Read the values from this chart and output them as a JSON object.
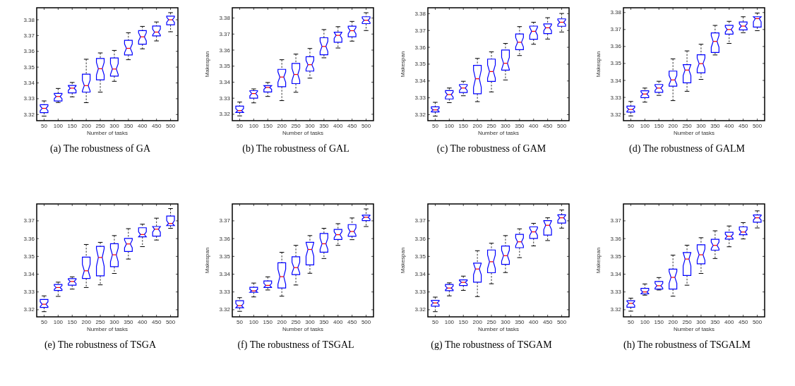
{
  "chart_data": [
    {
      "type": "box",
      "title": "(a) The robustness of GA",
      "xlabel": "Number of tasks",
      "categories": [
        "50",
        "100",
        "150",
        "200",
        "250",
        "300",
        "350",
        "400",
        "450",
        "500"
      ],
      "color": "#0000ff",
      "ylim": [
        3.3161,
        3.3876
      ],
      "yticks": [
        3.32,
        3.33,
        3.34,
        3.35,
        3.36,
        3.37,
        3.38
      ],
      "boxes": [
        {
          "low": 3.319,
          "q1": 3.3212,
          "median": 3.3239,
          "q3": 3.3262,
          "high": 3.3286
        },
        {
          "low": 3.3276,
          "q1": 3.3286,
          "median": 3.3314,
          "q3": 3.3334,
          "high": 3.3365
        },
        {
          "low": 3.3312,
          "q1": 3.3337,
          "median": 3.3367,
          "q3": 3.3384,
          "high": 3.3403
        },
        {
          "low": 3.3275,
          "q1": 3.3342,
          "median": 3.3383,
          "q3": 3.3455,
          "high": 3.355
        },
        {
          "low": 3.3342,
          "q1": 3.342,
          "median": 3.349,
          "q3": 3.3555,
          "high": 3.359
        },
        {
          "low": 3.341,
          "q1": 3.3443,
          "median": 3.3488,
          "q3": 3.3558,
          "high": 3.3606
        },
        {
          "low": 3.3547,
          "q1": 3.3577,
          "median": 3.3619,
          "q3": 3.367,
          "high": 3.3718
        },
        {
          "low": 3.3616,
          "q1": 3.3645,
          "median": 3.3692,
          "q3": 3.3731,
          "high": 3.3758
        },
        {
          "low": 3.3666,
          "q1": 3.3698,
          "median": 3.3722,
          "q3": 3.376,
          "high": 3.3786
        },
        {
          "low": 3.3724,
          "q1": 3.3768,
          "median": 3.38,
          "q3": 3.3823,
          "high": 3.3845
        }
      ]
    },
    {
      "type": "box",
      "title": "(b) The robustness of GAL",
      "xlabel": "Number of tasks",
      "ylabel": "Makespan",
      "categories": [
        "50",
        "100",
        "150",
        "200",
        "250",
        "300",
        "350",
        "400",
        "450",
        "500"
      ],
      "color": "#0000ff",
      "ylim": [
        3.316,
        3.3864
      ],
      "yticks": [
        3.32,
        3.33,
        3.34,
        3.35,
        3.36,
        3.37,
        3.38
      ],
      "boxes": [
        {
          "low": 3.319,
          "q1": 3.3211,
          "median": 3.3223,
          "q3": 3.3251,
          "high": 3.3276
        },
        {
          "low": 3.3271,
          "q1": 3.33,
          "median": 3.3329,
          "q3": 3.3347,
          "high": 3.3358
        },
        {
          "low": 3.3311,
          "q1": 3.3339,
          "median": 3.3367,
          "q3": 3.3378,
          "high": 3.3398
        },
        {
          "low": 3.3285,
          "q1": 3.3372,
          "median": 3.3432,
          "q3": 3.348,
          "high": 3.354
        },
        {
          "low": 3.3337,
          "q1": 3.3391,
          "median": 3.3448,
          "q3": 3.3517,
          "high": 3.3575
        },
        {
          "low": 3.3425,
          "q1": 3.3469,
          "median": 3.3509,
          "q3": 3.3559,
          "high": 3.361
        },
        {
          "low": 3.3552,
          "q1": 3.3571,
          "median": 3.3623,
          "q3": 3.3677,
          "high": 3.3728
        },
        {
          "low": 3.3613,
          "q1": 3.3649,
          "median": 3.3692,
          "q3": 3.3712,
          "high": 3.3746
        },
        {
          "low": 3.3656,
          "q1": 3.3683,
          "median": 3.3721,
          "q3": 3.3749,
          "high": 3.3779
        },
        {
          "low": 3.3722,
          "q1": 3.3765,
          "median": 3.3786,
          "q3": 3.3808,
          "high": 3.3833
        }
      ]
    },
    {
      "type": "box",
      "title": "(c) The robustness of GAM",
      "xlabel": "Number of tasks",
      "ylabel": "Makespan",
      "categories": [
        "50",
        "100",
        "150",
        "200",
        "250",
        "300",
        "350",
        "400",
        "450",
        "500"
      ],
      "color": "#0000ff",
      "ylim": [
        3.3164,
        3.3835
      ],
      "yticks": [
        3.32,
        3.33,
        3.34,
        3.35,
        3.36,
        3.37,
        3.38
      ],
      "boxes": [
        {
          "low": 3.3191,
          "q1": 3.3216,
          "median": 3.3228,
          "q3": 3.3246,
          "high": 3.3273
        },
        {
          "low": 3.3271,
          "q1": 3.3293,
          "median": 3.3319,
          "q3": 3.3343,
          "high": 3.3358
        },
        {
          "low": 3.3312,
          "q1": 3.3331,
          "median": 3.3358,
          "q3": 3.3379,
          "high": 3.3398
        },
        {
          "low": 3.3277,
          "q1": 3.3324,
          "median": 3.3413,
          "q3": 3.3493,
          "high": 3.3534
        },
        {
          "low": 3.3335,
          "q1": 3.3397,
          "median": 3.3456,
          "q3": 3.353,
          "high": 3.3573
        },
        {
          "low": 3.3406,
          "q1": 3.3464,
          "median": 3.3505,
          "q3": 3.3584,
          "high": 3.3623
        },
        {
          "low": 3.3551,
          "q1": 3.3586,
          "median": 3.363,
          "q3": 3.3679,
          "high": 3.3723
        },
        {
          "low": 3.3618,
          "q1": 3.3648,
          "median": 3.3695,
          "q3": 3.3726,
          "high": 3.3749
        },
        {
          "low": 3.3649,
          "q1": 3.3681,
          "median": 3.3716,
          "q3": 3.3739,
          "high": 3.3776
        },
        {
          "low": 3.3691,
          "q1": 3.3725,
          "median": 3.3749,
          "q3": 3.3769,
          "high": 3.3801
        }
      ]
    },
    {
      "type": "box",
      "title": "(d) The robustness of GALM",
      "xlabel": "Number of tasks",
      "ylabel": "Makespan",
      "categories": [
        "50",
        "100",
        "150",
        "200",
        "250",
        "300",
        "350",
        "400",
        "450",
        "500"
      ],
      "color": "#0000ff",
      "ylim": [
        3.3163,
        3.3828
      ],
      "yticks": [
        3.32,
        3.33,
        3.34,
        3.35,
        3.36,
        3.37,
        3.38
      ],
      "boxes": [
        {
          "low": 3.3191,
          "q1": 3.3213,
          "median": 3.3229,
          "q3": 3.3249,
          "high": 3.3276
        },
        {
          "low": 3.3272,
          "q1": 3.3299,
          "median": 3.332,
          "q3": 3.3339,
          "high": 3.3355
        },
        {
          "low": 3.3312,
          "q1": 3.333,
          "median": 3.3355,
          "q3": 3.3376,
          "high": 3.3395
        },
        {
          "low": 3.3281,
          "q1": 3.3366,
          "median": 3.3403,
          "q3": 3.3455,
          "high": 3.3527
        },
        {
          "low": 3.3336,
          "q1": 3.3386,
          "median": 3.3461,
          "q3": 3.3493,
          "high": 3.3574
        },
        {
          "low": 3.3406,
          "q1": 3.3445,
          "median": 3.3499,
          "q3": 3.3551,
          "high": 3.3613
        },
        {
          "low": 3.355,
          "q1": 3.3565,
          "median": 3.363,
          "q3": 3.368,
          "high": 3.3724
        },
        {
          "low": 3.3618,
          "q1": 3.3673,
          "median": 3.37,
          "q3": 3.3725,
          "high": 3.3748
        },
        {
          "low": 3.3681,
          "q1": 3.3698,
          "median": 3.372,
          "q3": 3.3744,
          "high": 3.3775
        },
        {
          "low": 3.3693,
          "q1": 3.3714,
          "median": 3.3764,
          "q3": 3.3775,
          "high": 3.3797
        }
      ]
    },
    {
      "type": "box",
      "title": "(e) The robustness of TSGA",
      "xlabel": "Number of tasks",
      "categories": [
        "50",
        "100",
        "150",
        "200",
        "250",
        "300",
        "350",
        "400",
        "450",
        "500"
      ],
      "color": "#0000ff",
      "ylim": [
        3.316,
        3.3795
      ],
      "yticks": [
        3.32,
        3.33,
        3.34,
        3.35,
        3.36,
        3.37
      ],
      "boxes": [
        {
          "low": 3.3189,
          "q1": 3.3213,
          "median": 3.3231,
          "q3": 3.3258,
          "high": 3.3278
        },
        {
          "low": 3.3275,
          "q1": 3.3308,
          "median": 3.3325,
          "q3": 3.3342,
          "high": 3.3355
        },
        {
          "low": 3.3316,
          "q1": 3.3338,
          "median": 3.3359,
          "q3": 3.3375,
          "high": 3.3385
        },
        {
          "low": 3.3325,
          "q1": 3.3376,
          "median": 3.3419,
          "q3": 3.3496,
          "high": 3.3567
        },
        {
          "low": 3.334,
          "q1": 3.3391,
          "median": 3.3494,
          "q3": 3.3556,
          "high": 3.3579
        },
        {
          "low": 3.3404,
          "q1": 3.3442,
          "median": 3.3509,
          "q3": 3.3571,
          "high": 3.3617
        },
        {
          "low": 3.3485,
          "q1": 3.3528,
          "median": 3.357,
          "q3": 3.3601,
          "high": 3.3656
        },
        {
          "low": 3.3555,
          "q1": 3.361,
          "median": 3.3623,
          "q3": 3.3661,
          "high": 3.3681
        },
        {
          "low": 3.3592,
          "q1": 3.3614,
          "median": 3.3653,
          "q3": 3.3668,
          "high": 3.3715
        },
        {
          "low": 3.3658,
          "q1": 3.3673,
          "median": 3.3685,
          "q3": 3.3727,
          "high": 3.3769
        }
      ]
    },
    {
      "type": "box",
      "title": "(f) The robustness of TSGAL",
      "xlabel": "Number of tasks",
      "ylabel": "Makespan",
      "categories": [
        "50",
        "100",
        "150",
        "200",
        "250",
        "300",
        "350",
        "400",
        "450",
        "500"
      ],
      "color": "#0000ff",
      "ylim": [
        3.316,
        3.3795
      ],
      "yticks": [
        3.32,
        3.33,
        3.34,
        3.35,
        3.36,
        3.37
      ],
      "boxes": [
        {
          "low": 3.3191,
          "q1": 3.3211,
          "median": 3.3223,
          "q3": 3.3251,
          "high": 3.3268
        },
        {
          "low": 3.3272,
          "q1": 3.3298,
          "median": 3.3306,
          "q3": 3.3326,
          "high": 3.335
        },
        {
          "low": 3.3311,
          "q1": 3.3325,
          "median": 3.3337,
          "q3": 3.3362,
          "high": 3.3385
        },
        {
          "low": 3.3276,
          "q1": 3.3322,
          "median": 3.3386,
          "q3": 3.3464,
          "high": 3.3523
        },
        {
          "low": 3.3339,
          "q1": 3.3398,
          "median": 3.3437,
          "q3": 3.3498,
          "high": 3.3562
        },
        {
          "low": 3.3405,
          "q1": 3.3452,
          "median": 3.3539,
          "q3": 3.3579,
          "high": 3.3617
        },
        {
          "low": 3.3488,
          "q1": 3.3524,
          "median": 3.3571,
          "q3": 3.3629,
          "high": 3.3658
        },
        {
          "low": 3.3562,
          "q1": 3.3595,
          "median": 3.3622,
          "q3": 3.3652,
          "high": 3.3684
        },
        {
          "low": 3.3594,
          "q1": 3.3613,
          "median": 3.364,
          "q3": 3.3679,
          "high": 3.3716
        },
        {
          "low": 3.3668,
          "q1": 3.3701,
          "median": 3.372,
          "q3": 3.3732,
          "high": 3.3767
        }
      ]
    },
    {
      "type": "box",
      "title": "(g) The robustness of TSGAM",
      "xlabel": "Number of tasks",
      "ylabel": "Makespan",
      "categories": [
        "50",
        "100",
        "150",
        "200",
        "250",
        "300",
        "350",
        "400",
        "450",
        "500"
      ],
      "color": "#0000ff",
      "ylim": [
        3.316,
        3.3795
      ],
      "yticks": [
        3.32,
        3.33,
        3.34,
        3.35,
        3.36,
        3.37
      ],
      "boxes": [
        {
          "low": 3.3189,
          "q1": 3.322,
          "median": 3.3238,
          "q3": 3.3253,
          "high": 3.3271
        },
        {
          "low": 3.3278,
          "q1": 3.3307,
          "median": 3.3322,
          "q3": 3.3342,
          "high": 3.3351
        },
        {
          "low": 3.3309,
          "q1": 3.3336,
          "median": 3.3354,
          "q3": 3.3368,
          "high": 3.3389
        },
        {
          "low": 3.3274,
          "q1": 3.3355,
          "median": 3.3429,
          "q3": 3.3462,
          "high": 3.3532
        },
        {
          "low": 3.3346,
          "q1": 3.3408,
          "median": 3.347,
          "q3": 3.3536,
          "high": 3.3574
        },
        {
          "low": 3.3409,
          "q1": 3.3455,
          "median": 3.3504,
          "q3": 3.3558,
          "high": 3.3617
        },
        {
          "low": 3.3493,
          "q1": 3.3549,
          "median": 3.3582,
          "q3": 3.3624,
          "high": 3.3655
        },
        {
          "low": 3.3559,
          "q1": 3.3601,
          "median": 3.3638,
          "q3": 3.3666,
          "high": 3.3686
        },
        {
          "low": 3.3589,
          "q1": 3.362,
          "median": 3.3675,
          "q3": 3.3701,
          "high": 3.3717
        },
        {
          "low": 3.3659,
          "q1": 3.3687,
          "median": 3.3717,
          "q3": 3.3734,
          "high": 3.3761
        }
      ]
    },
    {
      "type": "box",
      "title": "(h) The robustness of TSGALM",
      "xlabel": "Number of tasks",
      "ylabel": "Makespan",
      "categories": [
        "50",
        "100",
        "150",
        "200",
        "250",
        "300",
        "350",
        "400",
        "450",
        "500"
      ],
      "color": "#0000ff",
      "ylim": [
        3.316,
        3.3795
      ],
      "yticks": [
        3.32,
        3.33,
        3.34,
        3.35,
        3.36,
        3.37
      ],
      "boxes": [
        {
          "low": 3.3192,
          "q1": 3.3214,
          "median": 3.3236,
          "q3": 3.3251,
          "high": 3.3265
        },
        {
          "low": 3.3282,
          "q1": 3.3289,
          "median": 3.33,
          "q3": 3.332,
          "high": 3.3345
        },
        {
          "low": 3.3311,
          "q1": 3.3316,
          "median": 3.3335,
          "q3": 3.3359,
          "high": 3.3381
        },
        {
          "low": 3.3276,
          "q1": 3.3316,
          "median": 3.3382,
          "q3": 3.3428,
          "high": 3.3507
        },
        {
          "low": 3.3338,
          "q1": 3.3393,
          "median": 3.3485,
          "q3": 3.3522,
          "high": 3.3563
        },
        {
          "low": 3.3404,
          "q1": 3.3458,
          "median": 3.3509,
          "q3": 3.3565,
          "high": 3.3605
        },
        {
          "low": 3.3488,
          "q1": 3.3535,
          "median": 3.3562,
          "q3": 3.3596,
          "high": 3.3644
        },
        {
          "low": 3.3554,
          "q1": 3.3597,
          "median": 3.3613,
          "q3": 3.3636,
          "high": 3.3671
        },
        {
          "low": 3.3598,
          "q1": 3.3622,
          "median": 3.3637,
          "q3": 3.3666,
          "high": 3.369
        },
        {
          "low": 3.366,
          "q1": 3.3692,
          "median": 3.3717,
          "q3": 3.3733,
          "high": 3.3756
        }
      ]
    }
  ]
}
